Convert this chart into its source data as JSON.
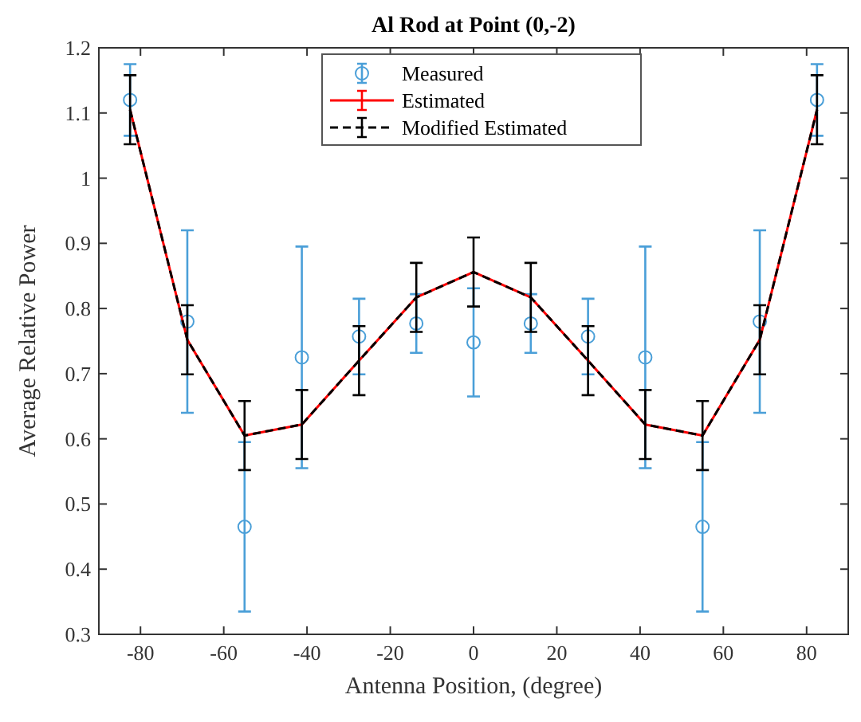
{
  "chart_data": {
    "type": "line",
    "title": "Al Rod at Point (0,-2)",
    "xlabel": "Antenna Position, (degree)",
    "ylabel": "Average Relative Power",
    "x": [
      -82.5,
      -68.75,
      -55,
      -41.25,
      -27.5,
      -13.75,
      0,
      13.75,
      27.5,
      41.25,
      55,
      68.75,
      82.5
    ],
    "xlim": [
      -90,
      90
    ],
    "xticks": [
      -80,
      -60,
      -40,
      -20,
      0,
      20,
      40,
      60,
      80
    ],
    "ylim": [
      0.3,
      1.2
    ],
    "yticks": [
      0.3,
      0.4,
      0.5,
      0.6,
      0.7,
      0.8,
      0.9,
      1,
      1.1,
      1.2
    ],
    "legend": "top",
    "grid": false,
    "series": [
      {
        "name": "Measured",
        "type": "scatter",
        "marker": "circle",
        "color": "#4a9fd8",
        "values": [
          1.12,
          0.78,
          0.465,
          0.725,
          0.757,
          0.777,
          0.748,
          0.777,
          0.757,
          0.725,
          0.465,
          0.78,
          1.12
        ],
        "errors": [
          0.055,
          0.14,
          0.13,
          0.17,
          0.058,
          0.045,
          0.083,
          0.045,
          0.058,
          0.17,
          0.13,
          0.14,
          0.055
        ]
      },
      {
        "name": "Estimated",
        "line_style": "solid",
        "marker": "none",
        "color": "#ff0000",
        "values": [
          1.105,
          0.752,
          0.605,
          0.622,
          0.72,
          0.817,
          0.856,
          0.817,
          0.72,
          0.622,
          0.605,
          0.752,
          1.105
        ],
        "errors": [
          null,
          null,
          null,
          null,
          null,
          null,
          null,
          null,
          null,
          null,
          null,
          null,
          null
        ]
      },
      {
        "name": "Modified Estimated",
        "line_style": "dashed",
        "marker": "none",
        "color": "#000000",
        "values": [
          1.105,
          0.752,
          0.605,
          0.622,
          0.72,
          0.817,
          0.856,
          0.817,
          0.72,
          0.622,
          0.605,
          0.752,
          1.105
        ],
        "errors": [
          0.053,
          0.053,
          0.053,
          0.053,
          0.053,
          0.053,
          0.053,
          0.053,
          0.053,
          0.053,
          0.053,
          0.053,
          0.053
        ]
      }
    ]
  }
}
